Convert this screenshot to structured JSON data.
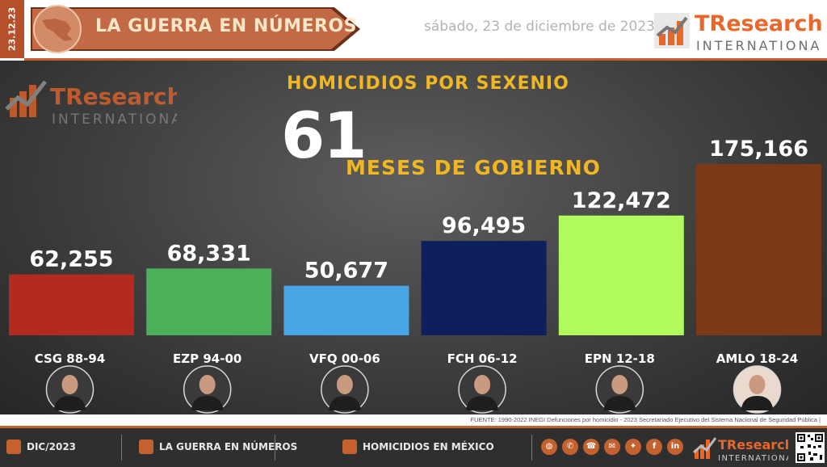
{
  "header": {
    "date_strip": "23.12.23",
    "title": "LA GUERRA EN NÚMEROS",
    "date_long": "sábado, 23 de diciembre de 2023",
    "logo_primary": "TResearch",
    "logo_secondary": "INTERNATIONAL"
  },
  "main": {
    "title": "HOMICIDIOS POR SEXENIO",
    "months_number": "61",
    "months_label": "MESES DE GOBIERNO"
  },
  "chart_data": {
    "type": "bar",
    "title": "HOMICIDIOS POR SEXENIO",
    "categories": [
      "CSG 88-94",
      "EZP 94-00",
      "VFQ 00-06",
      "FCH 06-12",
      "EPN 12-18",
      "AMLO 18-24"
    ],
    "values": [
      62255,
      68331,
      50677,
      96495,
      122472,
      175166
    ],
    "value_labels": [
      "62,255",
      "68,331",
      "50,677",
      "96,495",
      "122,472",
      "175,166"
    ],
    "colors": [
      "#b52a1e",
      "#4caf5a",
      "#48a6e6",
      "#0e1f5e",
      "#b0fa5b",
      "#7a3a15"
    ],
    "ylim": [
      0,
      175166
    ],
    "grid": false,
    "legend": "none"
  },
  "source": "FUENTE: 1990-2022 INEGI Defunciones por homicidio - 2023 Secretariado Ejecutivo del Sistema Nacional de Seguridad Pública |",
  "footer": {
    "items": [
      {
        "label": "DIC/2023",
        "icon": "calendar-icon"
      },
      {
        "label": "LA GUERRA EN NÚMEROS",
        "icon": "map-pin-icon"
      },
      {
        "label": "HOMICIDIOS EN MÉXICO",
        "icon": "chat-icon"
      }
    ],
    "social": [
      "globe-icon",
      "whatsapp-icon",
      "phone-icon",
      "mail-icon",
      "twitter-icon",
      "facebook-icon",
      "linkedin-icon",
      "youtube-icon"
    ],
    "logo_primary": "TResearch",
    "logo_secondary": "INTERNATIONAL"
  },
  "colors": {
    "accent": "#c5612f",
    "gold": "#f0b722"
  }
}
